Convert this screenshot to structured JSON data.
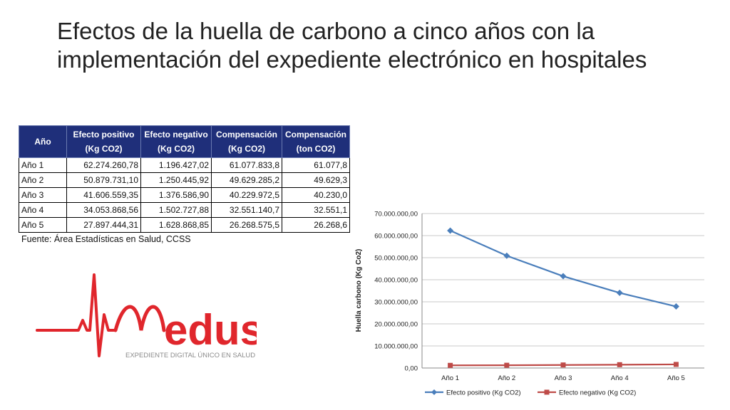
{
  "title": "Efectos de la huella de carbono a cinco años con la implementación del expediente electrónico en hospitales",
  "table": {
    "headers": [
      {
        "line1": "Año",
        "line2": ""
      },
      {
        "line1": "Efecto positivo",
        "line2": "(Kg CO2)"
      },
      {
        "line1": "Efecto negativo",
        "line2": "(Kg CO2)"
      },
      {
        "line1": "Compensación",
        "line2": "(Kg CO2)"
      },
      {
        "line1": "Compensación",
        "line2": "(ton CO2)"
      }
    ],
    "rows": [
      [
        "Año 1",
        "62.274.260,78",
        "1.196.427,02",
        "61.077.833,8",
        "61.077,8"
      ],
      [
        "Año 2",
        "50.879.731,10",
        "1.250.445,92",
        "49.629.285,2",
        "49.629,3"
      ],
      [
        "Año 3",
        "41.606.559,35",
        "1.376.586,90",
        "40.229.972,5",
        "40.230,0"
      ],
      [
        "Año 4",
        "34.053.868,56",
        "1.502.727,88",
        "32.551.140,7",
        "32.551,1"
      ],
      [
        "Año 5",
        "27.897.444,31",
        "1.628.868,85",
        "26.268.575,5",
        "26.268,6"
      ]
    ]
  },
  "source": "Fuente: Área Estadísticas en Salud, CCSS",
  "logo": {
    "wordmark": "edus",
    "tagline": "EXPEDIENTE DIGITAL ÚNICO EN SALUD",
    "color": "#e0262c"
  },
  "chart_data": {
    "type": "line",
    "categories": [
      "Año 1",
      "Año 2",
      "Año 3",
      "Año 4",
      "Año 5"
    ],
    "series": [
      {
        "name": "Efecto positivo (Kg CO2)",
        "values": [
          62274260.78,
          50879731.1,
          41606559.35,
          34053868.56,
          27897444.31
        ],
        "color": "#4a7ebb",
        "marker": "diamond"
      },
      {
        "name": "Efecto negativo (Kg CO2)",
        "values": [
          1196427.02,
          1250445.92,
          1376586.9,
          1502727.88,
          1628868.85
        ],
        "color": "#be4b48",
        "marker": "square"
      }
    ],
    "ylabel": "Huella carbono (Kg Co2)",
    "xlabel": "",
    "ylim": [
      0,
      70000000
    ],
    "yticks": [
      0,
      10000000,
      20000000,
      30000000,
      40000000,
      50000000,
      60000000,
      70000000
    ],
    "ytick_labels": [
      "0,00",
      "10.000.000,00",
      "20.000.000,00",
      "30.000.000,00",
      "40.000.000,00",
      "50.000.000,00",
      "60.000.000,00",
      "70.000.000,00"
    ],
    "grid": true,
    "legend": "bottom"
  }
}
